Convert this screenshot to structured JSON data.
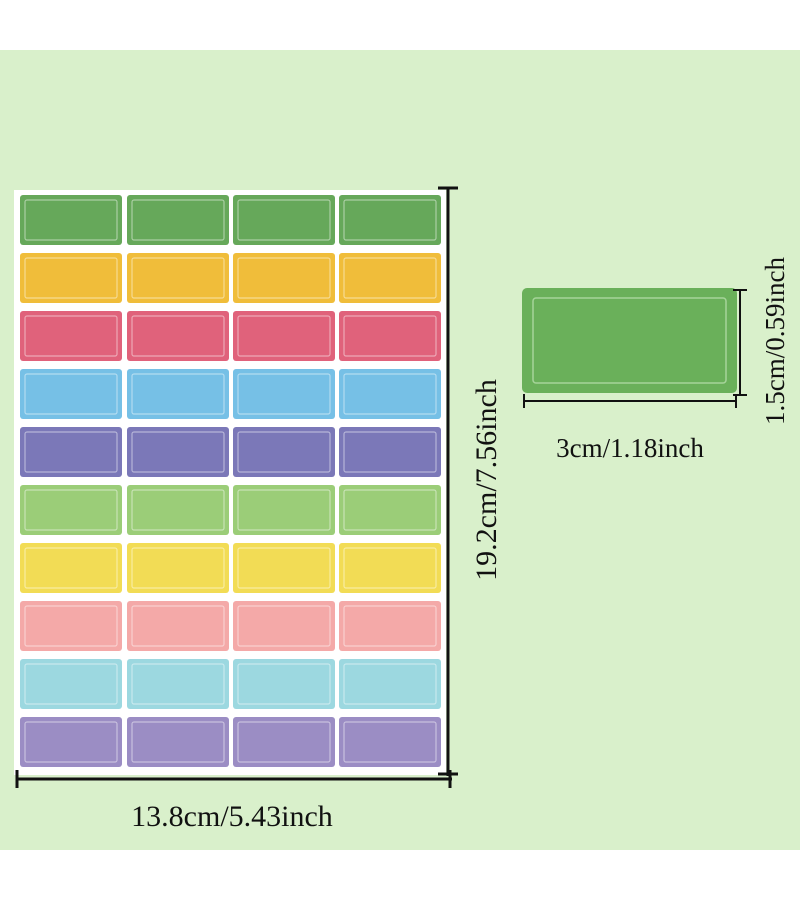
{
  "labels": {
    "sheet_width": "13.8cm/5.43inch",
    "sheet_height": "19.2cm/7.56inch",
    "label_width": "3cm/1.18inch",
    "label_height": "1.5cm/0.59inch"
  }
}
